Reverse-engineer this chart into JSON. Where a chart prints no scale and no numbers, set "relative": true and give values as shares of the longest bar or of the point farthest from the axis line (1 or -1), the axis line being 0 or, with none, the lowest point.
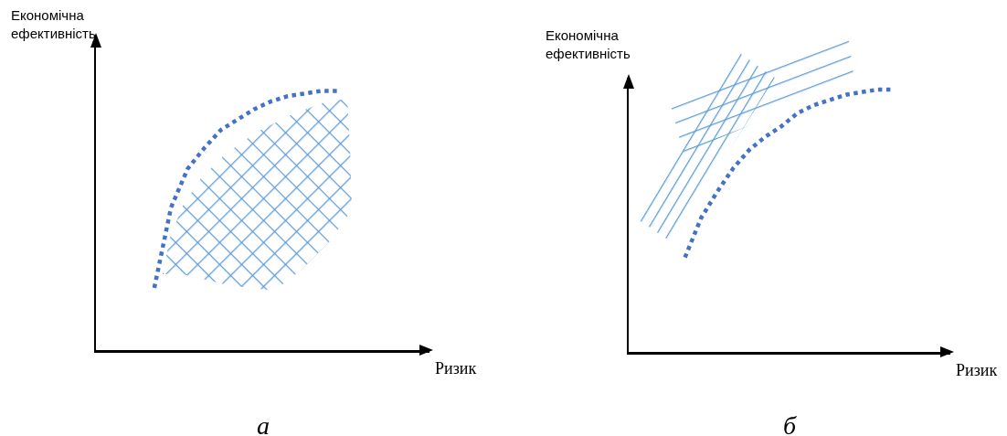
{
  "chart_data": [
    {
      "type": "line",
      "relative": true,
      "xlabel": "Ризик",
      "ylabel": "Економічна ефективність",
      "annotations": [
        "а"
      ],
      "line_style": "dotted",
      "categories": [
        null,
        null,
        null,
        null,
        null,
        null,
        null,
        null,
        null,
        null,
        null,
        null,
        null,
        null,
        null,
        null,
        null,
        null,
        null,
        null
      ],
      "series": [
        {
          "color": "#4472c4",
          "values": [
            null,
            null,
            null,
            0.24,
            0.55,
            0.7,
            0.78,
            0.85,
            0.89,
            0.93,
            0.96,
            0.98,
            0.99,
            1.0,
            1.0,
            null,
            null,
            null,
            null,
            null
          ]
        }
      ]
    },
    {
      "type": "line",
      "relative": true,
      "xlabel": "Ризик",
      "ylabel": "Економічна ефективність",
      "annotations": [
        "б"
      ],
      "line_style": "dotted",
      "categories": [
        null,
        null,
        null,
        null,
        null,
        null,
        null,
        null,
        null,
        null,
        null,
        null,
        null,
        null,
        null,
        null,
        null,
        null,
        null,
        null
      ],
      "series": [
        {
          "color": "#4472c4",
          "values": [
            null,
            null,
            null,
            0.36,
            0.51,
            0.61,
            0.7,
            0.77,
            0.82,
            0.86,
            0.91,
            0.94,
            0.96,
            0.98,
            0.99,
            1.0,
            1.0,
            null,
            null,
            null
          ]
        }
      ]
    }
  ]
}
